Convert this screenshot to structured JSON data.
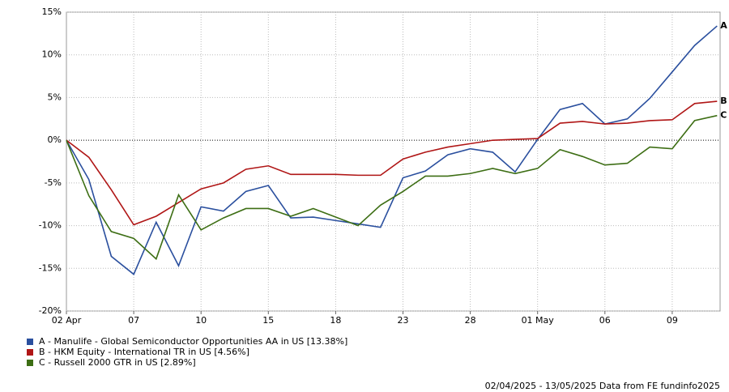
{
  "chart_data": {
    "type": "line",
    "categories": [
      "02 Apr",
      null,
      null,
      "07",
      null,
      null,
      "10",
      null,
      null,
      "15",
      null,
      null,
      "18",
      null,
      null,
      "23",
      null,
      null,
      "28",
      null,
      null,
      "01 May",
      null,
      null,
      "06",
      null,
      null,
      "09",
      null,
      null
    ],
    "ylim": [
      -20,
      15
    ],
    "yticks": [
      {
        "value": -20,
        "label": "-20%"
      },
      {
        "value": -15,
        "label": "-15%"
      },
      {
        "value": -10,
        "label": "-10%"
      },
      {
        "value": -5,
        "label": "-5%"
      },
      {
        "value": 0,
        "label": "0%"
      },
      {
        "value": 5,
        "label": "5%"
      },
      {
        "value": 10,
        "label": "10%"
      },
      {
        "value": 15,
        "label": "15%"
      }
    ],
    "grid": true,
    "series": [
      {
        "name": "A - Manulife - Global Semiconductor Opportunities AA in US [13.38%]",
        "label": "A",
        "color": "#2a4f9e",
        "values": [
          0,
          -4.6,
          -13.6,
          -15.7,
          -9.6,
          -14.7,
          -7.8,
          -8.3,
          -6.0,
          -5.3,
          -9.1,
          -9.0,
          -9.4,
          -9.8,
          -10.2,
          -4.4,
          -3.6,
          -1.7,
          -1.0,
          -1.4,
          -3.7,
          0.1,
          3.6,
          4.3,
          1.9,
          2.5,
          4.9,
          8.0,
          11.1,
          13.38
        ]
      },
      {
        "name": "B - HKM Equity - International TR in US [4.56%]",
        "label": "B",
        "color": "#b01616",
        "values": [
          0,
          -2.0,
          -5.8,
          -9.9,
          -8.9,
          -7.3,
          -5.7,
          -5.0,
          -3.4,
          -3.0,
          -4.0,
          -4.0,
          -4.0,
          -4.1,
          -4.1,
          -2.2,
          -1.4,
          -0.8,
          -0.4,
          0.0,
          0.1,
          0.2,
          2.0,
          2.2,
          1.9,
          2.0,
          2.3,
          2.4,
          4.3,
          4.56
        ]
      },
      {
        "name": "C - Russell 2000 GTR in US [2.89%]",
        "label": "C",
        "color": "#3d6e14",
        "values": [
          0,
          -6.5,
          -10.7,
          -11.5,
          -13.9,
          -6.4,
          -10.5,
          -9.1,
          -8.0,
          -8.0,
          -8.9,
          -8.0,
          -9.0,
          -10.0,
          -7.6,
          -6.0,
          -4.2,
          -4.2,
          -3.9,
          -3.3,
          -3.9,
          -3.3,
          -1.1,
          -1.9,
          -2.9,
          -2.7,
          -0.8,
          -1.0,
          2.3,
          2.89
        ]
      }
    ],
    "footer": "02/04/2025 - 13/05/2025 Data from FE fundinfo2025"
  }
}
